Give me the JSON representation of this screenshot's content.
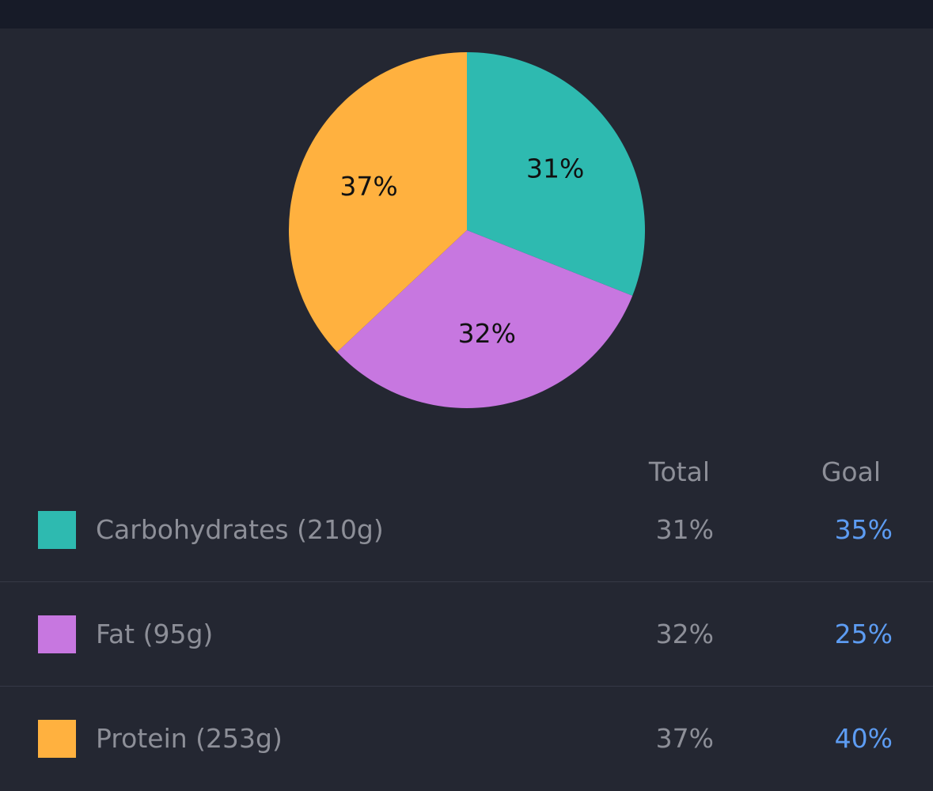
{
  "chart_data": {
    "type": "pie",
    "slices": [
      {
        "name": "Carbohydrates",
        "value": 31,
        "label": "31%",
        "color": "#2ebab0"
      },
      {
        "name": "Fat",
        "value": 32,
        "label": "32%",
        "color": "#c777e0"
      },
      {
        "name": "Protein",
        "value": 37,
        "label": "37%",
        "color": "#ffb13f"
      }
    ]
  },
  "table": {
    "headers": {
      "total": "Total",
      "goal": "Goal"
    },
    "rows": [
      {
        "label": "Carbohydrates (210g)",
        "total": "31%",
        "goal": "35%",
        "color": "#2ebab0"
      },
      {
        "label": "Fat (95g)",
        "total": "32%",
        "goal": "25%",
        "color": "#c777e0"
      },
      {
        "label": "Protein (253g)",
        "total": "37%",
        "goal": "40%",
        "color": "#ffb13f"
      }
    ]
  },
  "colors": {
    "background": "#242732",
    "topbar": "#171b28",
    "goal_text": "#5d9cf2",
    "muted_text": "#8d8f98"
  }
}
